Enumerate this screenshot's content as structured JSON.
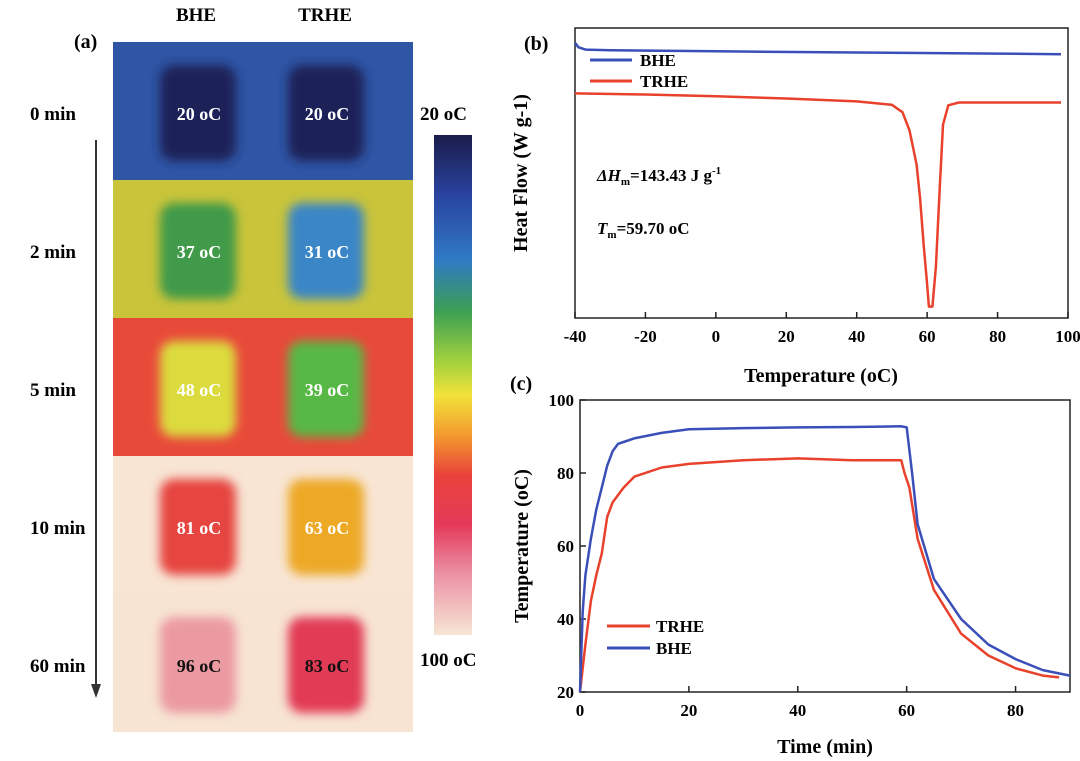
{
  "panel_a": {
    "label": "(a)",
    "columns": [
      "BHE",
      "TRHE"
    ],
    "colorbar": {
      "top_label": "20 oC",
      "bottom_label": "100 oC",
      "min": 20,
      "max": 100
    },
    "rows": [
      {
        "time": "0 min",
        "bhe": "20 oC",
        "trhe": "20 oC",
        "bhe_value": 20,
        "trhe_value": 20,
        "background": "#2f55a5",
        "bhe_color": "#1c2458",
        "trhe_color": "#1c2458",
        "text_color": "#ffffff"
      },
      {
        "time": "2 min",
        "bhe": "37 oC",
        "trhe": "31 oC",
        "bhe_value": 37,
        "trhe_value": 31,
        "background": "#c9c43a",
        "bhe_color": "#3f9a4a",
        "trhe_color": "#3a86c6",
        "text_color": "#ffffff"
      },
      {
        "time": "5 min",
        "bhe": "48 oC",
        "trhe": "39 oC",
        "bhe_value": 48,
        "trhe_value": 39,
        "background": "#e84a3a",
        "bhe_color": "#dcdb3e",
        "trhe_color": "#58b845",
        "text_color": "#ffffff"
      },
      {
        "time": "10 min",
        "bhe": "81 oC",
        "trhe": "63 oC",
        "bhe_value": 81,
        "trhe_value": 63,
        "background": "#f8e5d4",
        "bhe_color": "#e6443f",
        "trhe_color": "#eda927",
        "text_color": "#ffffff"
      },
      {
        "time": "60 min",
        "bhe": "96 oC",
        "trhe": "83 oC",
        "bhe_value": 96,
        "trhe_value": 83,
        "background": "#f7e4d3",
        "bhe_color": "#ec9aa2",
        "trhe_color": "#e23a55",
        "text_color": "#111111"
      }
    ]
  },
  "chart_data": [
    {
      "panel": "(b)",
      "type": "line",
      "xlabel": "Temperature (oC)",
      "ylabel": "Heat Flow (W g-1)",
      "xlim": [
        -40,
        100
      ],
      "xticks": [
        -40,
        -20,
        0,
        20,
        40,
        60,
        80,
        100
      ],
      "yticks_shown": false,
      "legend": {
        "placement": "top-left",
        "entries": [
          "BHE",
          "TRHE"
        ]
      },
      "annotations": {
        "dh_prefix": "ΔH",
        "dh_sub": "m",
        "dh_value": "=143.43 J g",
        "dh_sup": "-1",
        "tm_prefix": "T",
        "tm_sub": "m",
        "tm_value": "=59.70 oC"
      },
      "series": [
        {
          "name": "BHE",
          "color": "#3a4fb8",
          "x": [
            -40,
            -39,
            -37,
            -30,
            0,
            40,
            80,
            98
          ],
          "y": [
            2.4,
            1.6,
            1.2,
            1.1,
            0.9,
            0.7,
            0.5,
            0.4
          ]
        },
        {
          "name": "TRHE",
          "color": "#e8412c",
          "x": [
            -40,
            -20,
            0,
            20,
            40,
            50,
            53,
            55,
            57,
            58,
            59,
            60,
            60.5,
            61.5,
            62.5,
            63.5,
            64.5,
            66,
            69,
            80,
            98
          ],
          "y": [
            -6.5,
            -6.7,
            -7.0,
            -7.4,
            -7.9,
            -8.5,
            -9.8,
            -13,
            -19,
            -25,
            -33,
            -40,
            -44,
            -44,
            -37,
            -24,
            -12,
            -8.6,
            -8.1,
            -8.1,
            -8.1
          ]
        }
      ],
      "ylim": [
        -46,
        5
      ]
    },
    {
      "panel": "(c)",
      "type": "line",
      "xlabel": "Time (min)",
      "ylabel": "Temperature (oC)",
      "xlim": [
        0,
        90
      ],
      "ylim": [
        20,
        100
      ],
      "xticks": [
        0,
        20,
        40,
        60,
        80
      ],
      "yticks": [
        20,
        40,
        60,
        80,
        100
      ],
      "legend": {
        "placement": "bottom-left",
        "entries": [
          "TRHE",
          "BHE"
        ]
      },
      "series": [
        {
          "name": "TRHE",
          "color": "#e8412c",
          "x": [
            0,
            1,
            2,
            3,
            4,
            5,
            6,
            8,
            10,
            15,
            20,
            30,
            40,
            50,
            59,
            59.6,
            60.5,
            62,
            65,
            70,
            75,
            80,
            85,
            88
          ],
          "y": [
            20,
            33,
            45,
            52,
            58,
            68,
            72,
            76,
            79,
            81.5,
            82.5,
            83.5,
            84,
            83.5,
            83.5,
            80,
            76,
            62,
            48,
            36,
            30,
            26.5,
            24.5,
            24
          ]
        },
        {
          "name": "BHE",
          "color": "#3a4fb8",
          "x": [
            0,
            0.5,
            1,
            2,
            3,
            4,
            5,
            6,
            7,
            8,
            10,
            15,
            20,
            30,
            40,
            50,
            59,
            60,
            61,
            62,
            65,
            70,
            75,
            80,
            85,
            90
          ],
          "y": [
            20,
            42,
            52,
            62,
            70,
            76,
            82,
            86,
            88,
            88.5,
            89.5,
            91,
            92,
            92.3,
            92.5,
            92.6,
            92.8,
            92.5,
            80,
            66,
            51,
            40,
            33,
            29,
            26,
            24.5
          ]
        }
      ]
    }
  ]
}
